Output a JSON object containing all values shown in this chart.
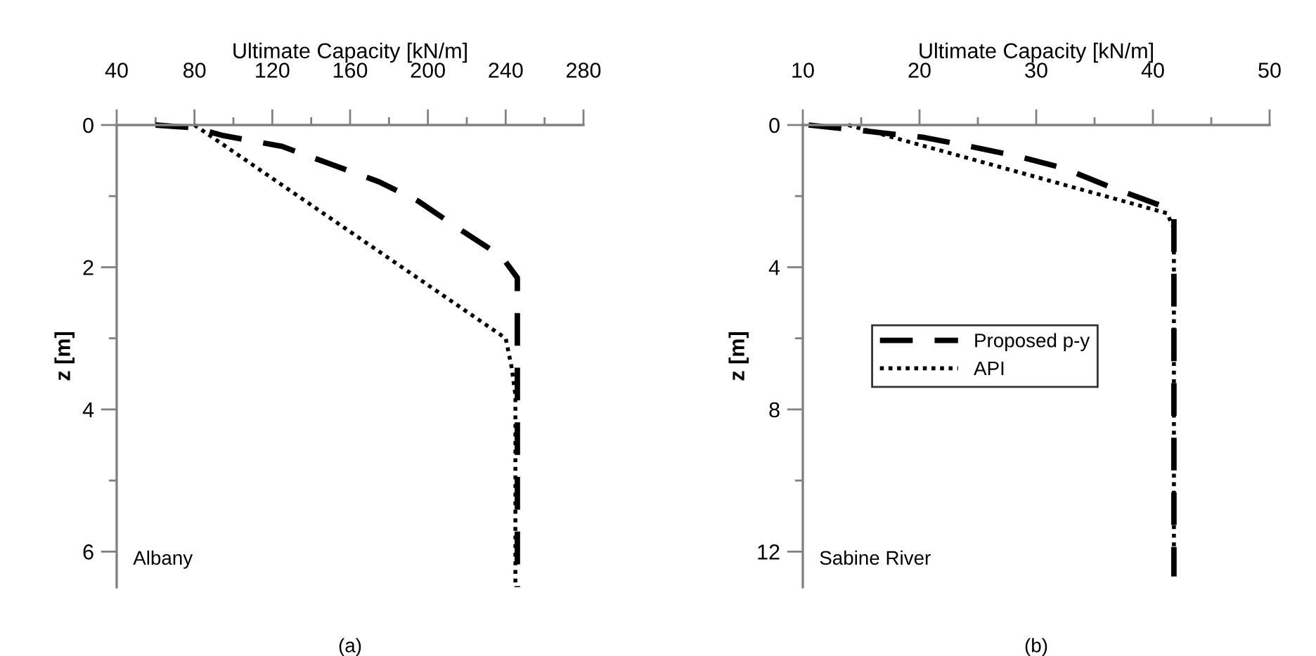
{
  "chart_data": [
    {
      "type": "line",
      "xlabel": "Ultimate Capacity [kN/m]",
      "ylabel": "z [m]",
      "xlim": [
        40,
        280
      ],
      "ylim": [
        6.5,
        0
      ],
      "xticks": [
        40,
        {
          "value": 60,
          "label": null
        },
        80,
        {
          "value": 100,
          "label": null
        },
        120,
        {
          "value": 140,
          "label": null
        },
        160,
        {
          "value": 180,
          "label": null
        },
        200,
        {
          "value": 220,
          "label": null
        },
        240,
        {
          "value": 260,
          "label": null
        },
        280
      ],
      "yticks": [
        0,
        {
          "value": 1,
          "label": null
        },
        2,
        {
          "value": 3,
          "label": null
        },
        4,
        {
          "value": 5,
          "label": null
        },
        6
      ],
      "grid": false,
      "legend": false,
      "marker": "none",
      "series": [
        {
          "color": "#000000",
          "line_style": "dashed",
          "x": [
            60,
            80,
            95,
            125,
            150,
            175,
            195,
            216,
            238,
            246,
            246
          ],
          "values": [
            0,
            0.04,
            0.15,
            0.3,
            0.55,
            0.8,
            1.07,
            1.46,
            1.85,
            2.15,
            6.5
          ]
        },
        {
          "color": "#000000",
          "line_style": "dotted",
          "x": [
            80,
            240,
            243,
            245,
            245
          ],
          "values": [
            0,
            3.0,
            3.4,
            3.8,
            6.5
          ]
        }
      ],
      "annotations": [
        "Albany",
        "(a)"
      ]
    },
    {
      "type": "line",
      "xlabel": "Ultimate Capacity [kN/m]",
      "ylabel": "z [m]",
      "xlim": [
        10,
        50
      ],
      "ylim": [
        13,
        0
      ],
      "xticks": [
        10,
        {
          "value": 15,
          "label": null
        },
        20,
        {
          "value": 25,
          "label": null
        },
        30,
        {
          "value": 35,
          "label": null
        },
        40,
        {
          "value": 45,
          "label": null
        },
        50
      ],
      "yticks": [
        0,
        {
          "value": 2,
          "label": null
        },
        4,
        {
          "value": 6,
          "label": null
        },
        8,
        {
          "value": 10,
          "label": null
        },
        12
      ],
      "grid": false,
      "legend": "center",
      "marker": "none",
      "series": [
        {
          "name": "Proposed p-y",
          "color": "#000000",
          "line_style": "dashed",
          "x": [
            10.5,
            15.1,
            20.4,
            24.3,
            28.3,
            32.4,
            36.4,
            40.8,
            41.8,
            41.8
          ],
          "values": [
            0,
            0.16,
            0.35,
            0.6,
            0.87,
            1.22,
            1.75,
            2.28,
            2.6,
            12.7
          ]
        },
        {
          "name": "API",
          "color": "#000000",
          "line_style": "dotted",
          "x": [
            13.9,
            41.2,
            41.8,
            41.8
          ],
          "values": [
            0,
            2.48,
            2.9,
            12.7
          ]
        }
      ],
      "annotations": [
        "Sabine River",
        "(b)"
      ]
    }
  ]
}
